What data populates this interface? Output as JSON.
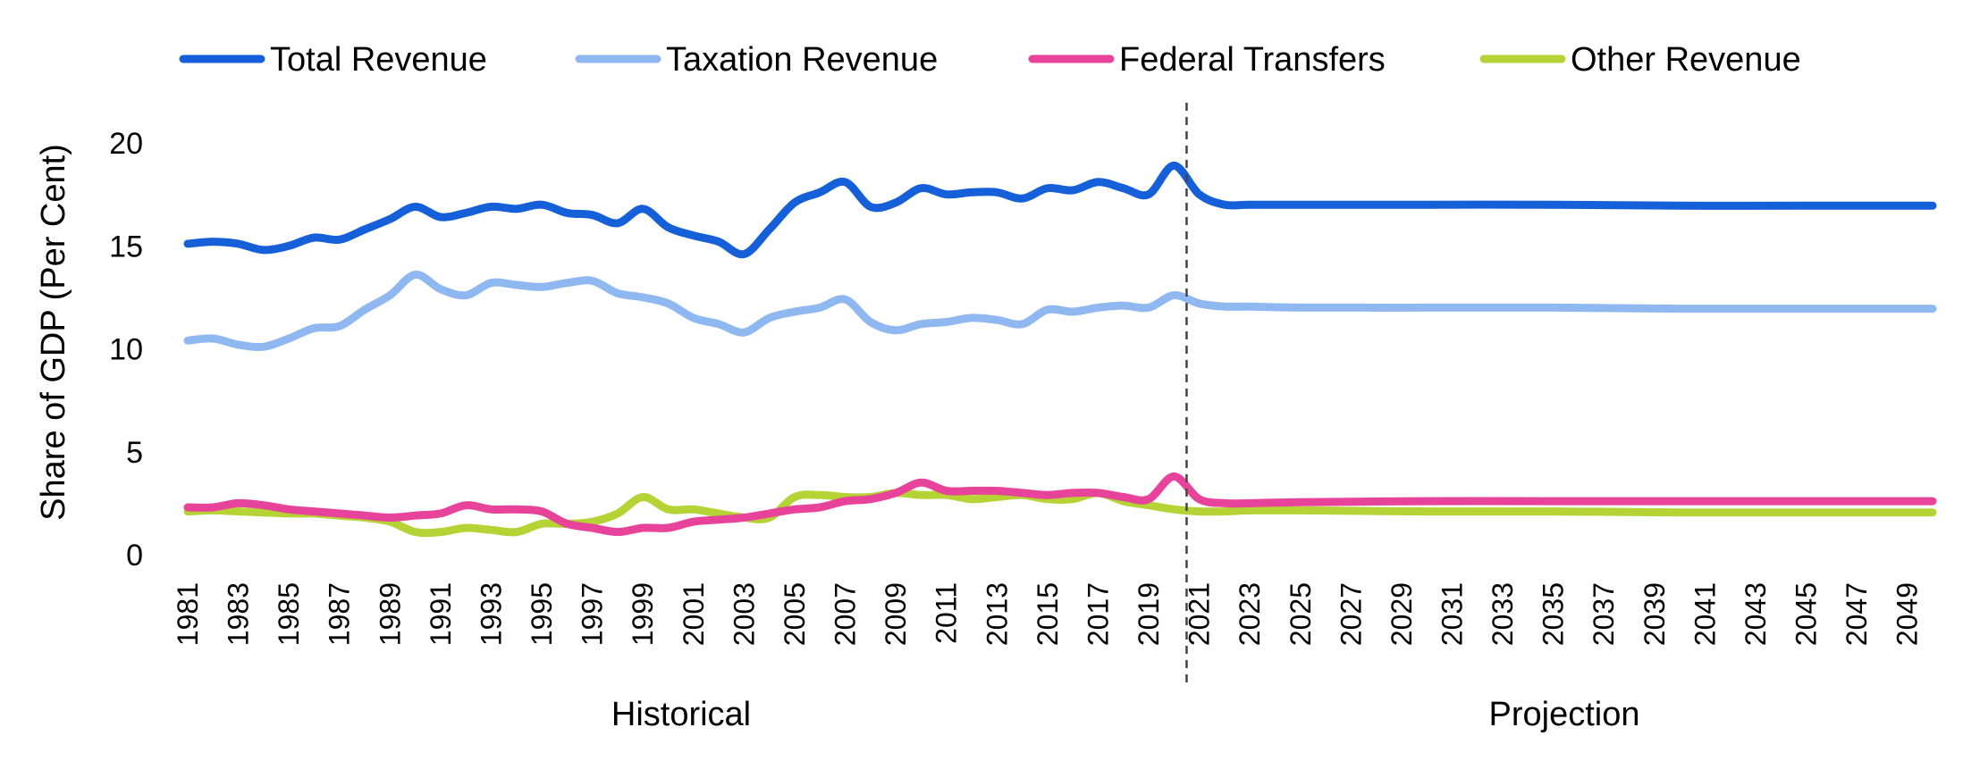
{
  "chart_data": {
    "type": "line",
    "title": "",
    "ylabel": "Share of GDP (Per Cent)",
    "xlabel": "",
    "ylim": [
      0,
      20
    ],
    "yticks": [
      0,
      5,
      10,
      15,
      20
    ],
    "xlim": [
      1981,
      2050
    ],
    "xtick_labels": [
      "1981",
      "1983",
      "1985",
      "1987",
      "1989",
      "1991",
      "1993",
      "1995",
      "1997",
      "1999",
      "2001",
      "2003",
      "2005",
      "2007",
      "2009",
      "2011",
      "2013",
      "2015",
      "2017",
      "2019",
      "2021",
      "2023",
      "2025",
      "2027",
      "2029",
      "2031",
      "2033",
      "2035",
      "2037",
      "2039",
      "2041",
      "2043",
      "2045",
      "2047",
      "2049"
    ],
    "grid": false,
    "legend_position": "top",
    "divider": {
      "at": 2020.5,
      "style": "dashed"
    },
    "sections": [
      {
        "label": "Historical",
        "from": 1981,
        "to": 2020
      },
      {
        "label": "Projection",
        "from": 2021,
        "to": 2050
      }
    ],
    "series": [
      {
        "name": "Total Revenue",
        "color": "#1560d8",
        "x": [
          1981,
          1982,
          1983,
          1984,
          1985,
          1986,
          1987,
          1988,
          1989,
          1990,
          1991,
          1992,
          1993,
          1994,
          1995,
          1996,
          1997,
          1998,
          1999,
          2000,
          2001,
          2002,
          2003,
          2004,
          2005,
          2006,
          2007,
          2008,
          2009,
          2010,
          2011,
          2012,
          2013,
          2014,
          2015,
          2016,
          2017,
          2018,
          2019,
          2020,
          2021,
          2022,
          2023,
          2025,
          2030,
          2035,
          2040,
          2045,
          2050
        ],
        "values": [
          15.1,
          15.2,
          15.1,
          14.8,
          15.0,
          15.4,
          15.3,
          15.8,
          16.3,
          16.9,
          16.4,
          16.6,
          16.9,
          16.8,
          17.0,
          16.6,
          16.5,
          16.1,
          16.8,
          15.9,
          15.5,
          15.2,
          14.6,
          15.8,
          17.1,
          17.6,
          18.1,
          16.9,
          17.1,
          17.8,
          17.5,
          17.6,
          17.6,
          17.3,
          17.8,
          17.7,
          18.1,
          17.8,
          17.5,
          18.9,
          17.5,
          17.0,
          17.0,
          17.0,
          17.0,
          17.0,
          16.95,
          16.95,
          16.95
        ]
      },
      {
        "name": "Taxation Revenue",
        "color": "#90b8f0",
        "x": [
          1981,
          1982,
          1983,
          1984,
          1985,
          1986,
          1987,
          1988,
          1989,
          1990,
          1991,
          1992,
          1993,
          1994,
          1995,
          1996,
          1997,
          1998,
          1999,
          2000,
          2001,
          2002,
          2003,
          2004,
          2005,
          2006,
          2007,
          2008,
          2009,
          2010,
          2011,
          2012,
          2013,
          2014,
          2015,
          2016,
          2017,
          2018,
          2019,
          2020,
          2021,
          2022,
          2023,
          2025,
          2030,
          2035,
          2040,
          2045,
          2050
        ],
        "values": [
          10.4,
          10.5,
          10.2,
          10.1,
          10.5,
          11.0,
          11.1,
          11.9,
          12.6,
          13.6,
          12.9,
          12.6,
          13.2,
          13.1,
          13.0,
          13.2,
          13.3,
          12.7,
          12.5,
          12.2,
          11.5,
          11.2,
          10.8,
          11.5,
          11.8,
          12.0,
          12.4,
          11.3,
          10.9,
          11.2,
          11.3,
          11.5,
          11.4,
          11.2,
          11.9,
          11.8,
          12.0,
          12.1,
          12.0,
          12.6,
          12.2,
          12.05,
          12.05,
          12.0,
          12.0,
          12.0,
          11.95,
          11.95,
          11.95
        ]
      },
      {
        "name": "Federal Transfers",
        "color": "#e8439a",
        "x": [
          1981,
          1982,
          1983,
          1984,
          1985,
          1986,
          1987,
          1988,
          1989,
          1990,
          1991,
          1992,
          1993,
          1994,
          1995,
          1996,
          1997,
          1998,
          1999,
          2000,
          2001,
          2002,
          2003,
          2004,
          2005,
          2006,
          2007,
          2008,
          2009,
          2010,
          2011,
          2012,
          2013,
          2014,
          2015,
          2016,
          2017,
          2018,
          2019,
          2020,
          2021,
          2022,
          2023,
          2025,
          2030,
          2035,
          2040,
          2045,
          2050
        ],
        "values": [
          2.3,
          2.3,
          2.5,
          2.4,
          2.2,
          2.1,
          2.0,
          1.9,
          1.8,
          1.9,
          2.0,
          2.4,
          2.2,
          2.2,
          2.1,
          1.5,
          1.3,
          1.1,
          1.3,
          1.3,
          1.6,
          1.7,
          1.8,
          2.0,
          2.2,
          2.3,
          2.6,
          2.7,
          3.0,
          3.5,
          3.1,
          3.1,
          3.1,
          3.0,
          2.9,
          3.0,
          3.0,
          2.8,
          2.7,
          3.8,
          2.7,
          2.5,
          2.5,
          2.55,
          2.6,
          2.6,
          2.6,
          2.6,
          2.6
        ]
      },
      {
        "name": "Other Revenue",
        "color": "#b5d335",
        "x": [
          1981,
          1982,
          1983,
          1984,
          1985,
          1986,
          1987,
          1988,
          1989,
          1990,
          1991,
          1992,
          1993,
          1994,
          1995,
          1996,
          1997,
          1998,
          1999,
          2000,
          2001,
          2002,
          2003,
          2004,
          2005,
          2006,
          2007,
          2008,
          2009,
          2010,
          2011,
          2012,
          2013,
          2014,
          2015,
          2016,
          2017,
          2018,
          2019,
          2020,
          2021,
          2022,
          2023,
          2025,
          2030,
          2035,
          2040,
          2045,
          2050
        ],
        "values": [
          2.1,
          2.15,
          2.1,
          2.05,
          2.0,
          2.0,
          1.9,
          1.8,
          1.6,
          1.1,
          1.1,
          1.3,
          1.2,
          1.1,
          1.5,
          1.5,
          1.6,
          2.0,
          2.8,
          2.2,
          2.2,
          2.0,
          1.8,
          1.8,
          2.8,
          2.9,
          2.8,
          2.8,
          3.0,
          2.9,
          2.9,
          2.7,
          2.8,
          2.9,
          2.7,
          2.7,
          3.0,
          2.6,
          2.4,
          2.2,
          2.1,
          2.1,
          2.15,
          2.15,
          2.1,
          2.1,
          2.05,
          2.05,
          2.05
        ]
      }
    ]
  }
}
